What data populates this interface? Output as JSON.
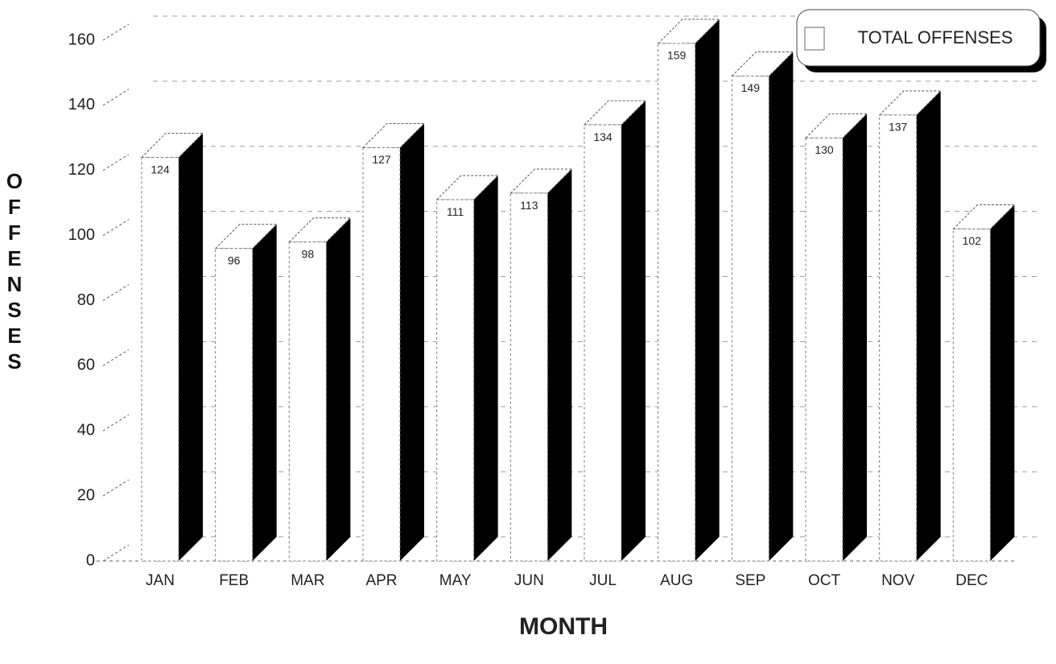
{
  "chart_data": {
    "type": "bar",
    "legend": "TOTAL OFFENSES",
    "xlabel": "MONTH",
    "ylabel": "OFFENSES",
    "categories": [
      "JAN",
      "FEB",
      "MAR",
      "APR",
      "MAY",
      "JUN",
      "JUL",
      "AUG",
      "SEP",
      "OCT",
      "NOV",
      "DEC"
    ],
    "values": [
      124,
      96,
      98,
      127,
      111,
      113,
      134,
      159,
      149,
      130,
      137,
      102
    ],
    "color": "#ffffff",
    "side_color": "#000000",
    "ylim": [
      0,
      160
    ],
    "yticks": [
      0,
      20,
      40,
      60,
      80,
      100,
      120,
      140,
      160
    ],
    "grid": true
  }
}
